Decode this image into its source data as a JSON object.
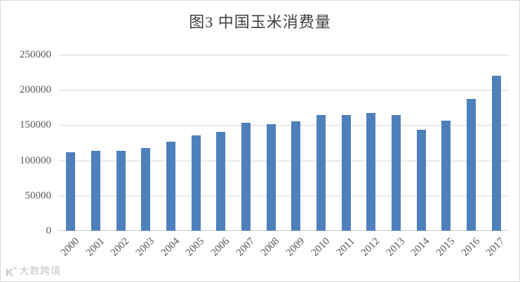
{
  "chart_data": {
    "type": "bar",
    "title": "图3 中国玉米消费量",
    "categories": [
      "2000",
      "2001",
      "2002",
      "2003",
      "2004",
      "2005",
      "2006",
      "2007",
      "2008",
      "2009",
      "2010",
      "2011",
      "2012",
      "2013",
      "2014",
      "2015",
      "2016",
      "2017"
    ],
    "values": [
      112000,
      113500,
      113500,
      118000,
      126500,
      135500,
      140500,
      153500,
      151500,
      155000,
      164500,
      164500,
      167000,
      164500,
      143500,
      156000,
      187500,
      220500
    ],
    "xlabel": "",
    "ylabel": "",
    "ylim": [
      0,
      250000
    ],
    "yticks": [
      0,
      50000,
      100000,
      150000,
      200000,
      250000
    ],
    "grid": true,
    "legend": false,
    "bar_color": "#4e80bc",
    "gridline_color": "#d9d9d9",
    "title_color": "#3f3f3f",
    "tick_label_color": "#595959"
  },
  "watermark": {
    "logo": "K",
    "logo_superscript": "°°",
    "text": "大数跨境"
  }
}
